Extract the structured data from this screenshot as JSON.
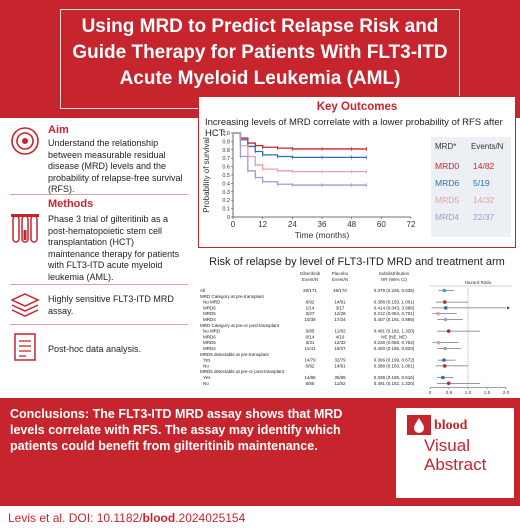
{
  "header": {
    "line1": "Using MRD to Predict Relapse Risk and",
    "line2": "Guide Therapy for Patients With FLT3-ITD",
    "line3": "Acute Myeloid Leukemia (AML)"
  },
  "aim": {
    "title": "Aim",
    "text": "Understand the relationship between measurable residual disease (MRD) levels and the probability of relapse-free survival (RFS)."
  },
  "methods": {
    "title": "Methods",
    "text1": "Phase 3 trial of gilteritinib as a post-hematopoietic stem cell transplantation (HCT) maintenance therapy for patients with FLT3-ITD acute myeloid leukemia (AML).",
    "text2": "Highly sensitive FLT3-ITD MRD assay.",
    "text3": "Post-hoc data analysis."
  },
  "key_outcomes": {
    "title": "Key Outcomes",
    "subtitle": "Increasing levels of MRD correlate with a lower probability of RFS after HCT:",
    "ylabel": "Probability of survival",
    "xlabel": "Time (months)",
    "xticks": [
      "0",
      "12",
      "24",
      "36",
      "48",
      "60",
      "72"
    ],
    "yticks": [
      "0",
      "0.1",
      "0.2",
      "0.3",
      "0.4",
      "0.5",
      "0.6",
      "0.7",
      "0.8",
      "0.9",
      "1.0"
    ],
    "legend_head_mrd": "MRD*",
    "legend_head_events": "Events/N",
    "legend": [
      {
        "name": "MRD0",
        "events": "14/82",
        "color": "#c6252d"
      },
      {
        "name": "MRD6",
        "events": "5/19",
        "color": "#2c6fb0"
      },
      {
        "name": "MRD5",
        "events": "14/32",
        "color": "#e8a0a0"
      },
      {
        "name": "MRD4",
        "events": "22/37",
        "color": "#9a9ccf"
      }
    ]
  },
  "chart_data": [
    {
      "type": "line",
      "xlabel": "Time (months)",
      "ylabel": "Probability of survival",
      "xlim": [
        0,
        72
      ],
      "ylim": [
        0,
        1.0
      ],
      "series": [
        {
          "name": "MRD0",
          "x": [
            0,
            3,
            6,
            9,
            12,
            18,
            24,
            36,
            48,
            54
          ],
          "y": [
            1.0,
            0.94,
            0.88,
            0.85,
            0.83,
            0.82,
            0.81,
            0.81,
            0.81,
            0.81
          ]
        },
        {
          "name": "MRD6",
          "x": [
            0,
            3,
            6,
            9,
            12,
            18,
            24,
            36,
            48,
            54
          ],
          "y": [
            1.0,
            0.92,
            0.84,
            0.78,
            0.74,
            0.72,
            0.71,
            0.71,
            0.71,
            0.71
          ]
        },
        {
          "name": "MRD5",
          "x": [
            0,
            3,
            6,
            9,
            12,
            18,
            24,
            36,
            48,
            54
          ],
          "y": [
            1.0,
            0.85,
            0.72,
            0.62,
            0.57,
            0.55,
            0.54,
            0.54,
            0.54,
            0.54
          ]
        },
        {
          "name": "MRD4",
          "x": [
            0,
            3,
            6,
            9,
            12,
            18,
            24,
            36,
            48,
            54
          ],
          "y": [
            1.0,
            0.72,
            0.55,
            0.47,
            0.42,
            0.39,
            0.38,
            0.38,
            0.38,
            0.38
          ]
        }
      ]
    },
    {
      "type": "table",
      "title": "Risk of relapse by level of FLT3-ITD MRD and treatment arm",
      "columns": [
        "",
        "Gilteritinib Event/N",
        "Placebo Event/N",
        "Subdistribution HR (95% CI)",
        "Hazard Ratio"
      ],
      "xlim": [
        0,
        2.0
      ],
      "xticks": [
        "0",
        "0.5",
        "1.0",
        "1.5",
        "2.0"
      ],
      "rows": [
        {
          "label": "All",
          "g": "20/171",
          "p": "46/170",
          "hr": "0.379 (0.226, 0.635)",
          "est": 0.379,
          "lo": 0.226,
          "hi": 0.635,
          "header": false,
          "color": "#3aa0c9"
        },
        {
          "label": "MRD Category at pre-transplant",
          "header": true
        },
        {
          "label": "No MRD",
          "g": "6/92",
          "p": "14/91",
          "hr": "0.388 (0.150, 1.001)",
          "est": 0.388,
          "lo": 0.15,
          "hi": 1.001,
          "header": false,
          "color": "#c6252d"
        },
        {
          "label": "MRD6",
          "g": "1/14",
          "p": "3/17",
          "hr": "0.414 (0.043, 3.996)",
          "est": 0.414,
          "lo": 0.043,
          "hi": 3.996,
          "header": false,
          "color": "#2c6fb0"
        },
        {
          "label": "MRD5",
          "g": "3/27",
          "p": "12/28",
          "hr": "0.212 (0.064, 0.701)",
          "est": 0.212,
          "lo": 0.064,
          "hi": 0.701,
          "header": false,
          "color": "#e8a0a0"
        },
        {
          "label": "MRD4",
          "g": "10/38",
          "p": "17/34",
          "hr": "0.407 (0.191, 0.866)",
          "est": 0.407,
          "lo": 0.191,
          "hi": 0.866,
          "header": false,
          "color": "#9a9ccf"
        },
        {
          "label": "MRD Category at pre-or post-transplant",
          "header": true
        },
        {
          "label": "No MRD",
          "g": "6/85",
          "p": "11/82",
          "hr": "0.491 (0.182, 1.320)",
          "est": 0.491,
          "lo": 0.182,
          "hi": 1.32,
          "header": false,
          "color": "#c6252d"
        },
        {
          "label": "MRD6",
          "g": "0/14",
          "p": "4/19",
          "hr": "NE (NE, NE)",
          "header": false
        },
        {
          "label": "MRD5",
          "g": "3/31",
          "p": "12/32",
          "hr": "0.226 (0.068, 0.754)",
          "est": 0.226,
          "lo": 0.068,
          "hi": 0.754,
          "header": false,
          "color": "#e8a0a0"
        },
        {
          "label": "MRD4",
          "g": "11/41",
          "p": "19/37",
          "hr": "0.400 (0.195, 0.820)",
          "est": 0.4,
          "lo": 0.195,
          "hi": 0.82,
          "header": false,
          "color": "#9a9ccf"
        },
        {
          "label": "MRD6 detectable at pre-transplant",
          "header": true
        },
        {
          "label": "Yes",
          "g": "14/79",
          "p": "32/79",
          "hr": "0.366 (0.199, 0.672)",
          "est": 0.366,
          "lo": 0.199,
          "hi": 0.672,
          "header": false,
          "color": "#2c6fb0"
        },
        {
          "label": "No",
          "g": "6/92",
          "p": "14/91",
          "hr": "0.388 (0.150, 1.001)",
          "est": 0.388,
          "lo": 0.15,
          "hi": 1.001,
          "header": false,
          "color": "#c6252d"
        },
        {
          "label": "MRD6 detectable at pre-or post-transplant",
          "header": true
        },
        {
          "label": "Yes",
          "g": "14/86",
          "p": "35/88",
          "hr": "0.338 (0.185, 0.616)",
          "est": 0.338,
          "lo": 0.185,
          "hi": 0.616,
          "header": false,
          "color": "#2c6fb0"
        },
        {
          "label": "No",
          "g": "6/85",
          "p": "11/82",
          "hr": "0.491 (0.182, 1.320)",
          "est": 0.491,
          "lo": 0.182,
          "hi": 1.32,
          "header": false,
          "color": "#c6252d"
        }
      ]
    }
  ],
  "conclusions": {
    "text": "Conclusions: The FLT3-ITD MRD assay shows that MRD levels correlate with RFS. The assay may identify which patients could benefit from gilteritinib maintenance."
  },
  "badge": {
    "logo": "blood",
    "line1": "Visual",
    "line2": "Abstract"
  },
  "citation": {
    "prefix": "Levis et al. DOI: 10.1182/",
    "journal": "blood",
    "suffix": ".2024025154"
  },
  "colors": {
    "accent": "#c6252d"
  }
}
